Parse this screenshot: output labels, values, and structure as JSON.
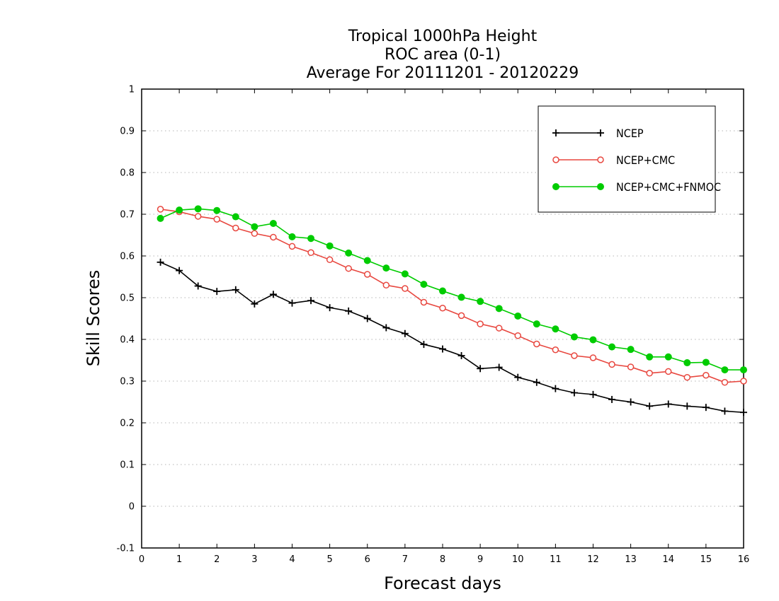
{
  "chart_data": {
    "type": "line",
    "title": [
      "Tropical 1000hPa Height",
      "ROC area (0-1)",
      "Average For 20111201 - 20120229"
    ],
    "xlabel": "Forecast days",
    "ylabel": "Skill Scores",
    "xlim": [
      0,
      16
    ],
    "ylim": [
      -0.1,
      1
    ],
    "xticks": [
      "0",
      "1",
      "2",
      "3",
      "4",
      "5",
      "6",
      "7",
      "8",
      "9",
      "10",
      "11",
      "12",
      "13",
      "14",
      "15",
      "16"
    ],
    "yticks": [
      "-0.1",
      "0",
      "0.1",
      "0.2",
      "0.3",
      "0.4",
      "0.5",
      "0.6",
      "0.7",
      "0.8",
      "0.9",
      "1"
    ],
    "grid": "horizontal dotted",
    "legend_position": "top-right",
    "x": [
      0.5,
      1,
      1.5,
      2,
      2.5,
      3,
      3.5,
      4,
      4.5,
      5,
      5.5,
      6,
      6.5,
      7,
      7.5,
      8,
      8.5,
      9,
      9.5,
      10,
      10.5,
      11,
      11.5,
      12,
      12.5,
      13,
      13.5,
      14,
      14.5,
      15,
      15.5,
      16
    ],
    "series": [
      {
        "name": "NCEP",
        "color": "#000000",
        "marker": "plus",
        "values": [
          0.585,
          0.565,
          0.528,
          0.515,
          0.519,
          0.485,
          0.508,
          0.487,
          0.493,
          0.476,
          0.468,
          0.45,
          0.428,
          0.414,
          0.388,
          0.377,
          0.361,
          0.33,
          0.333,
          0.309,
          0.297,
          0.282,
          0.272,
          0.268,
          0.256,
          0.25,
          0.24,
          0.245,
          0.24,
          0.237,
          0.228,
          0.225
        ]
      },
      {
        "name": "NCEP+CMC",
        "color": "#e8473f",
        "marker": "open-circle",
        "values": [
          0.712,
          0.706,
          0.695,
          0.688,
          0.667,
          0.654,
          0.645,
          0.623,
          0.608,
          0.591,
          0.57,
          0.556,
          0.53,
          0.522,
          0.489,
          0.475,
          0.457,
          0.437,
          0.427,
          0.409,
          0.389,
          0.375,
          0.361,
          0.356,
          0.34,
          0.334,
          0.319,
          0.323,
          0.309,
          0.314,
          0.297,
          0.3
        ]
      },
      {
        "name": "NCEP+CMC+FNMOC",
        "color": "#00cc00",
        "marker": "filled-circle",
        "values": [
          0.69,
          0.71,
          0.713,
          0.709,
          0.694,
          0.67,
          0.678,
          0.646,
          0.642,
          0.624,
          0.607,
          0.589,
          0.571,
          0.557,
          0.532,
          0.516,
          0.501,
          0.491,
          0.474,
          0.456,
          0.437,
          0.425,
          0.406,
          0.399,
          0.382,
          0.376,
          0.358,
          0.358,
          0.344,
          0.345,
          0.327,
          0.327
        ]
      }
    ]
  }
}
